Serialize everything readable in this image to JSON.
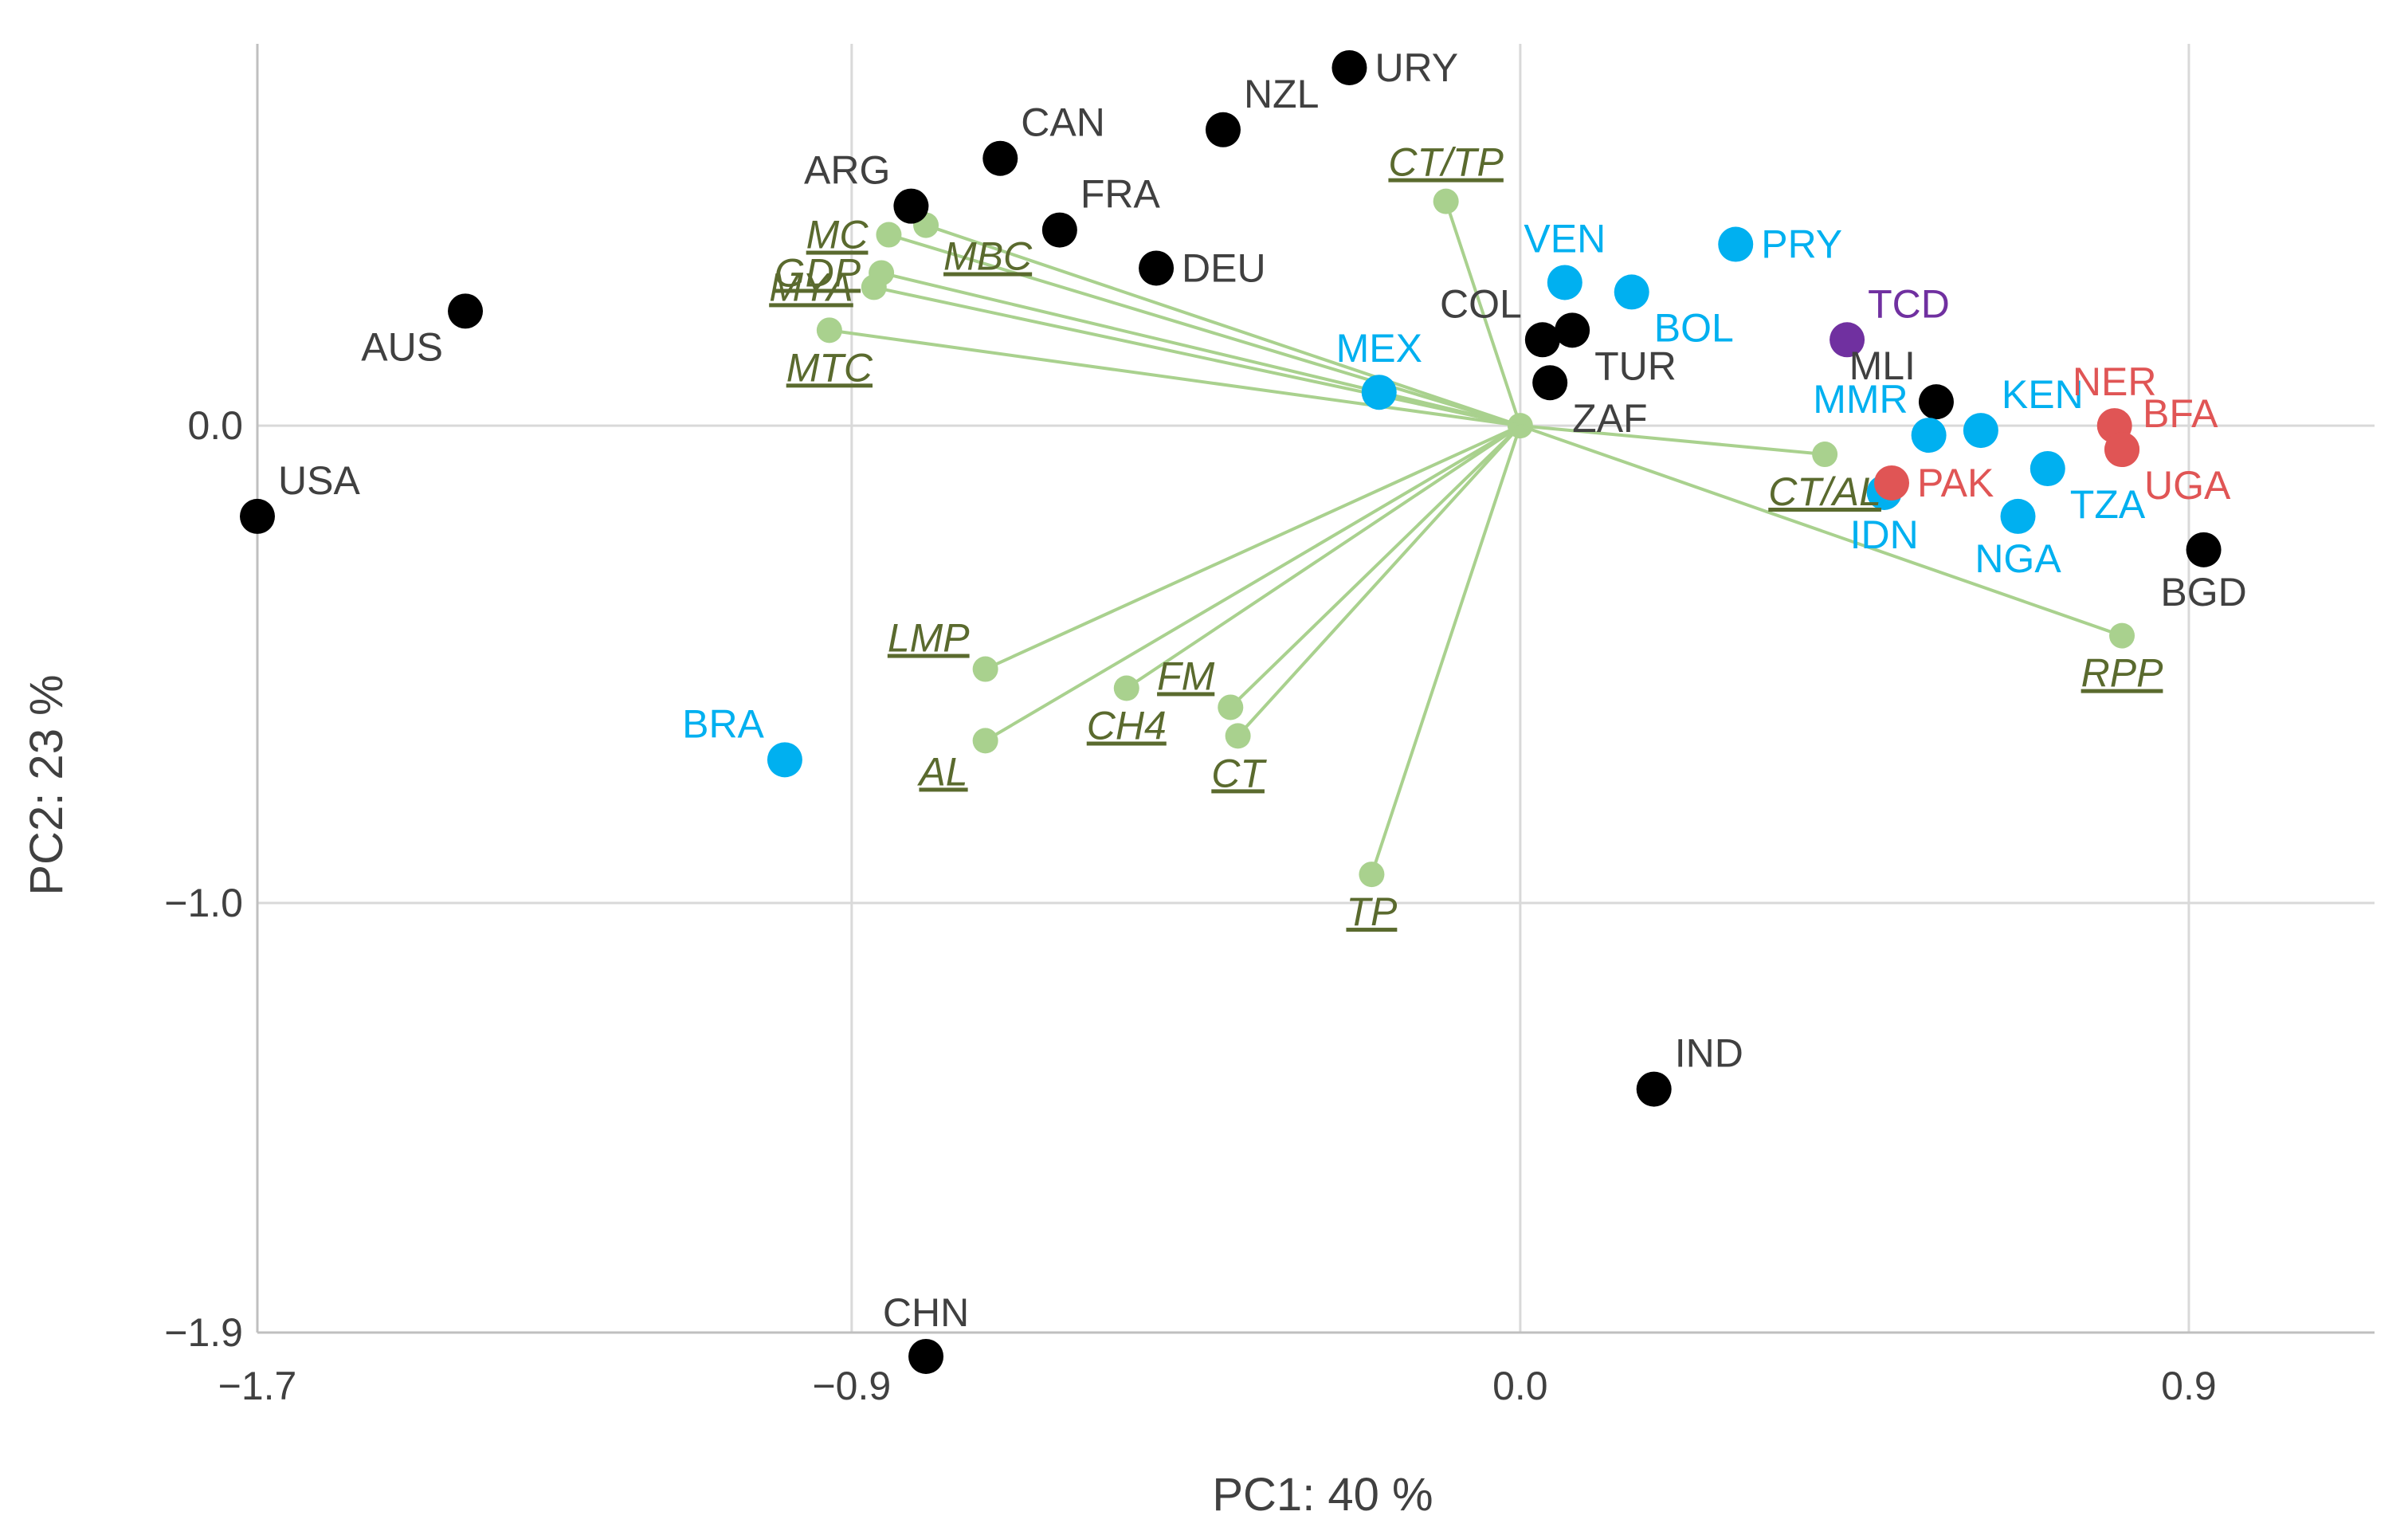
{
  "colors": {
    "black": "#000000",
    "blue": "#00b0f0",
    "red": "#e05555",
    "purple": "#7030a0",
    "vector": "#a9d18e",
    "vector_label": "#5a6a2e",
    "label_black": "#404040",
    "grid": "#d9d9d9"
  },
  "chart_data": {
    "type": "scatter",
    "title": "",
    "xlabel": "PC1: 40 %",
    "ylabel": "PC2: 23 %",
    "xlim": [
      -1.7,
      1.15
    ],
    "ylim": [
      -1.9,
      0.8
    ],
    "xticks": [
      {
        "value": -1.7,
        "label": "−1.7"
      },
      {
        "value": -0.9,
        "label": "−0.9"
      },
      {
        "value": 0.0,
        "label": "0.0"
      },
      {
        "value": 0.9,
        "label": "0.9"
      }
    ],
    "yticks": [
      {
        "value": 0.0,
        "label": "0.0"
      },
      {
        "value": -1.0,
        "label": "−1.0"
      },
      {
        "value": -1.9,
        "label": "−1.9"
      }
    ],
    "countries": [
      {
        "label": "USA",
        "x": -1.7,
        "y": -0.19,
        "color": "black",
        "label_pos": "ne"
      },
      {
        "label": "AUS",
        "x": -1.42,
        "y": 0.24,
        "color": "black",
        "label_pos": "sw"
      },
      {
        "label": "ARG",
        "x": -0.82,
        "y": 0.46,
        "color": "black",
        "label_pos": "nw"
      },
      {
        "label": "CAN",
        "x": -0.7,
        "y": 0.56,
        "color": "black",
        "label_pos": "ne"
      },
      {
        "label": "FRA",
        "x": -0.62,
        "y": 0.41,
        "color": "black",
        "label_pos": "ne"
      },
      {
        "label": "DEU",
        "x": -0.49,
        "y": 0.33,
        "color": "black",
        "label_pos": "e"
      },
      {
        "label": "NZL",
        "x": -0.4,
        "y": 0.62,
        "color": "black",
        "label_pos": "ne"
      },
      {
        "label": "URY",
        "x": -0.23,
        "y": 0.75,
        "color": "black",
        "label_pos": "e"
      },
      {
        "label": "COL",
        "x": 0.03,
        "y": 0.18,
        "color": "black",
        "label_pos": "nw"
      },
      {
        "label": "TUR",
        "x": 0.07,
        "y": 0.2,
        "color": "black",
        "label_pos": "se"
      },
      {
        "label": "ZAF",
        "x": 0.04,
        "y": 0.09,
        "color": "black",
        "label_pos": "se"
      },
      {
        "label": "MLI",
        "x": 0.56,
        "y": 0.05,
        "color": "black",
        "label_pos": "nw"
      },
      {
        "label": "BGD",
        "x": 0.92,
        "y": -0.26,
        "color": "black",
        "label_pos": "s"
      },
      {
        "label": "IND",
        "x": 0.18,
        "y": -1.39,
        "color": "black",
        "label_pos": "ne"
      },
      {
        "label": "CHN",
        "x": -0.8,
        "y": -1.95,
        "color": "black",
        "label_pos": "n"
      },
      {
        "label": "BRA",
        "x": -0.99,
        "y": -0.7,
        "color": "blue",
        "label_pos": "nw"
      },
      {
        "label": "MEX",
        "x": -0.19,
        "y": 0.07,
        "color": "blue",
        "label_pos": "n"
      },
      {
        "label": "VEN",
        "x": 0.06,
        "y": 0.3,
        "color": "blue",
        "label_pos": "n"
      },
      {
        "label": "BOL",
        "x": 0.15,
        "y": 0.28,
        "color": "blue",
        "label_pos": "se"
      },
      {
        "label": "PRY",
        "x": 0.29,
        "y": 0.38,
        "color": "blue",
        "label_pos": "e"
      },
      {
        "label": "KEN",
        "x": 0.62,
        "y": -0.01,
        "color": "blue",
        "label_pos": "ne"
      },
      {
        "label": "MMR",
        "x": 0.55,
        "y": -0.02,
        "color": "blue",
        "label_pos": "nw"
      },
      {
        "label": "IDN",
        "x": 0.49,
        "y": -0.14,
        "color": "blue",
        "label_pos": "s"
      },
      {
        "label": "NGA",
        "x": 0.67,
        "y": -0.19,
        "color": "blue",
        "label_pos": "s"
      },
      {
        "label": "TZA",
        "x": 0.71,
        "y": -0.09,
        "color": "blue",
        "label_pos": "se"
      },
      {
        "label": "TCD",
        "x": 0.44,
        "y": 0.18,
        "color": "purple",
        "label_pos": "ne"
      },
      {
        "label": "NER",
        "x": 0.8,
        "y": 0.0,
        "color": "red",
        "label_pos": "n"
      },
      {
        "label": "BFA",
        "x": 0.81,
        "y": -0.05,
        "color": "red",
        "label_pos": "ne"
      },
      {
        "label": "UGA",
        "x": 0.81,
        "y": -0.05,
        "color": "red",
        "label_pos": "se"
      },
      {
        "label": "PAK",
        "x": 0.5,
        "y": -0.12,
        "color": "red",
        "label_pos": "e"
      }
    ],
    "variables": [
      {
        "label": "MC",
        "x": -0.85,
        "y": 0.4,
        "label_pos": "w"
      },
      {
        "label": "MBC",
        "x": -0.8,
        "y": 0.42,
        "label_pos": "se"
      },
      {
        "label": "GDP",
        "x": -0.86,
        "y": 0.32,
        "label_pos": "w"
      },
      {
        "label": "MYA",
        "x": -0.87,
        "y": 0.29,
        "label_pos": "w"
      },
      {
        "label": "MTC",
        "x": -0.93,
        "y": 0.2,
        "label_pos": "s"
      },
      {
        "label": "CT/TP",
        "x": -0.1,
        "y": 0.47,
        "label_pos": "n"
      },
      {
        "label": "CT/AL",
        "x": 0.41,
        "y": -0.06,
        "label_pos": "s"
      },
      {
        "label": "RPP",
        "x": 0.81,
        "y": -0.44,
        "label_pos": "s"
      },
      {
        "label": "LMP",
        "x": -0.72,
        "y": -0.51,
        "label_pos": "nw"
      },
      {
        "label": "AL",
        "x": -0.72,
        "y": -0.66,
        "label_pos": "sw"
      },
      {
        "label": "CH4",
        "x": -0.53,
        "y": -0.55,
        "label_pos": "s"
      },
      {
        "label": "FM",
        "x": -0.39,
        "y": -0.59,
        "label_pos": "nw"
      },
      {
        "label": "CT",
        "x": -0.38,
        "y": -0.65,
        "label_pos": "s"
      },
      {
        "label": "TP",
        "x": -0.2,
        "y": -0.94,
        "label_pos": "s"
      }
    ]
  }
}
